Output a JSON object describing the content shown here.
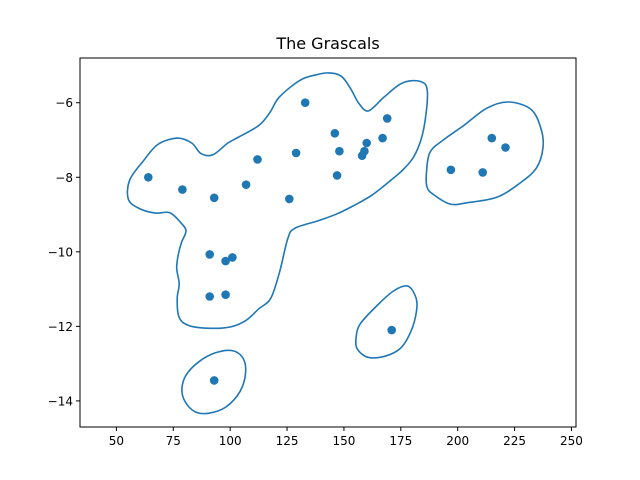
{
  "chart_data": {
    "type": "scatter",
    "title": "The Grascals",
    "xlabel": "",
    "ylabel": "",
    "xlim": [
      34,
      252
    ],
    "ylim": [
      -14.7,
      -4.8
    ],
    "x_ticks": [
      50,
      75,
      100,
      125,
      150,
      175,
      200,
      225,
      250
    ],
    "y_ticks": [
      -14,
      -12,
      -10,
      -8,
      -6
    ],
    "x_tick_labels": [
      "50",
      "75",
      "100",
      "125",
      "150",
      "175",
      "200",
      "225",
      "250"
    ],
    "y_tick_labels": [
      "−14",
      "−12",
      "−10",
      "−8",
      "−6"
    ],
    "grid": false,
    "point_color": "#1f77b4",
    "contour_color": "#1f77b4",
    "points": [
      {
        "x": 64,
        "y": -8.0
      },
      {
        "x": 79,
        "y": -8.33
      },
      {
        "x": 93,
        "y": -8.55
      },
      {
        "x": 107,
        "y": -8.2
      },
      {
        "x": 112,
        "y": -7.52
      },
      {
        "x": 126,
        "y": -8.58
      },
      {
        "x": 129,
        "y": -7.35
      },
      {
        "x": 133,
        "y": -6.0
      },
      {
        "x": 146,
        "y": -6.82
      },
      {
        "x": 147,
        "y": -7.95
      },
      {
        "x": 148,
        "y": -7.3
      },
      {
        "x": 158,
        "y": -7.42
      },
      {
        "x": 159,
        "y": -7.3
      },
      {
        "x": 160,
        "y": -7.08
      },
      {
        "x": 167,
        "y": -6.95
      },
      {
        "x": 169,
        "y": -6.42
      },
      {
        "x": 91,
        "y": -10.07
      },
      {
        "x": 98,
        "y": -10.25
      },
      {
        "x": 101,
        "y": -10.15
      },
      {
        "x": 91,
        "y": -11.2
      },
      {
        "x": 98,
        "y": -11.15
      },
      {
        "x": 197,
        "y": -7.8
      },
      {
        "x": 211,
        "y": -7.87
      },
      {
        "x": 215,
        "y": -6.95
      },
      {
        "x": 221,
        "y": -7.2
      },
      {
        "x": 171,
        "y": -12.1
      },
      {
        "x": 93,
        "y": -13.45
      }
    ],
    "contours": [
      [
        [
          55.3,
          -8.6
        ],
        [
          55.8,
          -8.08
        ],
        [
          62,
          -7.55
        ],
        [
          68.2,
          -7.12
        ],
        [
          76.6,
          -6.95
        ],
        [
          83.1,
          -7.08
        ],
        [
          87.1,
          -7.36
        ],
        [
          92.3,
          -7.4
        ],
        [
          99,
          -7.08
        ],
        [
          103.8,
          -6.92
        ],
        [
          112.8,
          -6.6
        ],
        [
          117.6,
          -6.25
        ],
        [
          121.6,
          -5.85
        ],
        [
          130.6,
          -5.4
        ],
        [
          137.8,
          -5.25
        ],
        [
          143.4,
          -5.2
        ],
        [
          148.9,
          -5.29
        ],
        [
          153.1,
          -5.64
        ],
        [
          156.6,
          -6.02
        ],
        [
          160.8,
          -6.22
        ],
        [
          167.8,
          -5.84
        ],
        [
          175.7,
          -5.47
        ],
        [
          183.7,
          -5.43
        ],
        [
          186.7,
          -5.71
        ],
        [
          185.1,
          -6.69
        ],
        [
          181.6,
          -7.35
        ],
        [
          176.6,
          -7.76
        ],
        [
          170.2,
          -8.1
        ],
        [
          162.3,
          -8.48
        ],
        [
          154,
          -8.77
        ],
        [
          146.6,
          -8.99
        ],
        [
          138.5,
          -9.17
        ],
        [
          128.4,
          -9.37
        ],
        [
          125.3,
          -9.65
        ],
        [
          121.7,
          -10.55
        ],
        [
          117.8,
          -11.25
        ],
        [
          112.6,
          -11.53
        ],
        [
          106.7,
          -11.85
        ],
        [
          99.7,
          -12.02
        ],
        [
          89.9,
          -12.05
        ],
        [
          81.5,
          -11.97
        ],
        [
          77.5,
          -11.75
        ],
        [
          76.7,
          -11.25
        ],
        [
          77.6,
          -10.86
        ],
        [
          76.5,
          -10.45
        ],
        [
          77.1,
          -10.1
        ],
        [
          78.6,
          -9.75
        ],
        [
          80.6,
          -9.44
        ],
        [
          78.3,
          -9.22
        ],
        [
          73.5,
          -8.95
        ],
        [
          67.1,
          -8.96
        ],
        [
          60.5,
          -8.85
        ]
      ],
      [
        [
          186.3,
          -7.86
        ],
        [
          187.9,
          -7.32
        ],
        [
          194.1,
          -6.98
        ],
        [
          202.7,
          -6.61
        ],
        [
          212.7,
          -6.15
        ],
        [
          222.2,
          -5.98
        ],
        [
          232.1,
          -6.17
        ],
        [
          236.5,
          -6.67
        ],
        [
          237.5,
          -7.2
        ],
        [
          234.5,
          -7.76
        ],
        [
          226.6,
          -8.19
        ],
        [
          217,
          -8.54
        ],
        [
          204.6,
          -8.68
        ],
        [
          196.7,
          -8.72
        ],
        [
          189.3,
          -8.46
        ],
        [
          186.5,
          -8.26
        ]
      ],
      [
        [
          155.4,
          -12.28
        ],
        [
          157.1,
          -11.94
        ],
        [
          163.9,
          -11.48
        ],
        [
          171.8,
          -11.05
        ],
        [
          178.1,
          -10.92
        ],
        [
          181.7,
          -11.24
        ],
        [
          181.9,
          -11.59
        ],
        [
          179.5,
          -12.13
        ],
        [
          175,
          -12.58
        ],
        [
          168.1,
          -12.8
        ],
        [
          160.6,
          -12.83
        ],
        [
          155.8,
          -12.6
        ]
      ],
      [
        [
          78.8,
          -13.68
        ],
        [
          80.6,
          -13.31
        ],
        [
          86.2,
          -12.95
        ],
        [
          93.5,
          -12.71
        ],
        [
          100.9,
          -12.65
        ],
        [
          105.6,
          -12.85
        ],
        [
          106.8,
          -13.24
        ],
        [
          104.4,
          -13.74
        ],
        [
          98.2,
          -14.16
        ],
        [
          90.7,
          -14.33
        ],
        [
          84.5,
          -14.29
        ],
        [
          80.1,
          -14.01
        ]
      ]
    ]
  }
}
